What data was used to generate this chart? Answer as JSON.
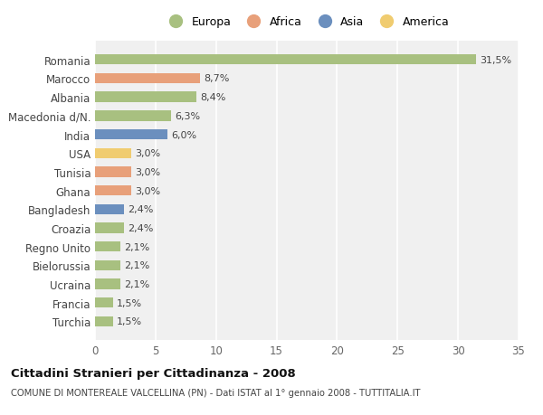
{
  "countries": [
    "Turchia",
    "Francia",
    "Ucraina",
    "Bielorussia",
    "Regno Unito",
    "Croazia",
    "Bangladesh",
    "Ghana",
    "Tunisia",
    "USA",
    "India",
    "Macedonia d/N.",
    "Albania",
    "Marocco",
    "Romania"
  ],
  "values": [
    1.5,
    1.5,
    2.1,
    2.1,
    2.1,
    2.4,
    2.4,
    3.0,
    3.0,
    3.0,
    6.0,
    6.3,
    8.4,
    8.7,
    31.5
  ],
  "colors": [
    "#a8c080",
    "#a8c080",
    "#a8c080",
    "#a8c080",
    "#a8c080",
    "#a8c080",
    "#6b8fbe",
    "#e8a07a",
    "#e8a07a",
    "#f0cc70",
    "#6b8fbe",
    "#a8c080",
    "#a8c080",
    "#e8a07a",
    "#a8c080"
  ],
  "labels": [
    "1,5%",
    "1,5%",
    "2,1%",
    "2,1%",
    "2,1%",
    "2,4%",
    "2,4%",
    "3,0%",
    "3,0%",
    "3,0%",
    "6,0%",
    "6,3%",
    "8,4%",
    "8,7%",
    "31,5%"
  ],
  "legend_labels": [
    "Europa",
    "Africa",
    "Asia",
    "America"
  ],
  "legend_colors": [
    "#a8c080",
    "#e8a07a",
    "#6b8fbe",
    "#f0cc70"
  ],
  "title": "Cittadini Stranieri per Cittadinanza - 2008",
  "subtitle": "COMUNE DI MONTEREALE VALCELLINA (PN) - Dati ISTAT al 1° gennaio 2008 - TUTTITALIA.IT",
  "xlim": [
    0,
    35
  ],
  "xticks": [
    0,
    5,
    10,
    15,
    20,
    25,
    30,
    35
  ],
  "background_color": "#ffffff",
  "plot_background": "#f0f0f0",
  "grid_color": "#ffffff"
}
